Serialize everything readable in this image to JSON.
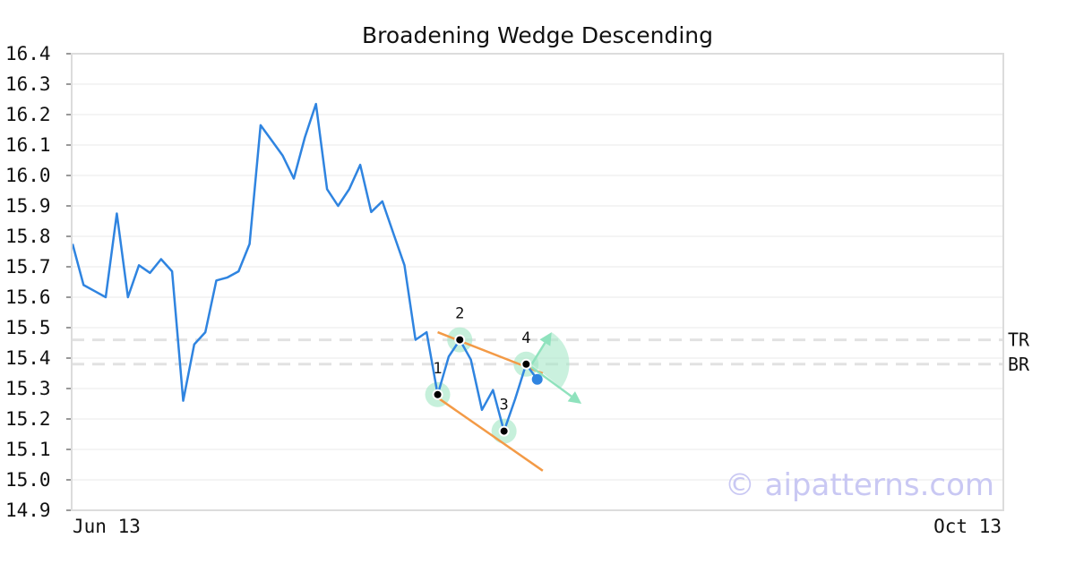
{
  "chart_data": {
    "type": "line",
    "title": "Broadening Wedge Descending",
    "ylim": [
      14.9,
      16.4
    ],
    "yticks": [
      "16.4",
      "16.3",
      "16.2",
      "16.1",
      "16.0",
      "15.9",
      "15.8",
      "15.7",
      "15.6",
      "15.5",
      "15.4",
      "15.3",
      "15.2",
      "15.1",
      "15.0",
      "14.9"
    ],
    "x_tick_labels": [
      "Jun 13",
      "Oct 13"
    ],
    "grid": true,
    "series": [
      {
        "values": [
          15.775,
          15.64,
          15.62,
          15.6,
          15.875,
          15.6,
          15.705,
          15.68,
          15.725,
          15.685,
          15.26,
          15.445,
          15.485,
          15.655,
          15.665,
          15.685,
          15.775,
          16.165,
          16.115,
          16.065,
          15.99,
          16.125,
          16.235,
          15.955,
          15.9,
          15.955,
          16.035,
          15.88,
          15.915,
          15.81,
          15.705,
          15.46,
          15.485,
          15.28,
          15.405,
          15.46,
          15.395,
          15.23,
          15.295,
          15.16,
          15.265,
          15.38,
          15.33
        ]
      }
    ],
    "pattern_points": [
      {
        "label": "1",
        "index": 33,
        "value": 15.28
      },
      {
        "label": "2",
        "index": 35,
        "value": 15.46
      },
      {
        "label": "3",
        "index": 39,
        "value": 15.16
      },
      {
        "label": "4",
        "index": 41,
        "value": 15.38
      }
    ],
    "last_point": {
      "index": 42,
      "value": 15.33
    },
    "trend_lines": {
      "upper": {
        "from": {
          "index": 33,
          "value": 15.485
        },
        "to": {
          "index": 42.5,
          "value": 15.35
        }
      },
      "lower": {
        "from": {
          "index": 33,
          "value": 15.27
        },
        "to": {
          "index": 42.5,
          "value": 15.03
        }
      }
    },
    "projection_arrows": [
      {
        "from": {
          "index": 41.5,
          "value": 15.38
        },
        "to": {
          "index": 43.3,
          "value": 15.485
        }
      },
      {
        "from": {
          "index": 41.5,
          "value": 15.37
        },
        "to": {
          "index": 46,
          "value": 15.25
        }
      }
    ],
    "reference_lines": [
      {
        "label": "TR",
        "value": 15.46
      },
      {
        "label": "BR",
        "value": 15.38
      }
    ],
    "watermark": "© aipatterns.com",
    "colors": {
      "line": "#2f84e0",
      "trend": "#f39a46",
      "highlight": "#a7e8c8",
      "arrow": "#8fe2bd",
      "grid": "#e8e8e8",
      "reference": "#e2e2e2",
      "frame": "#dcdcdc"
    }
  }
}
